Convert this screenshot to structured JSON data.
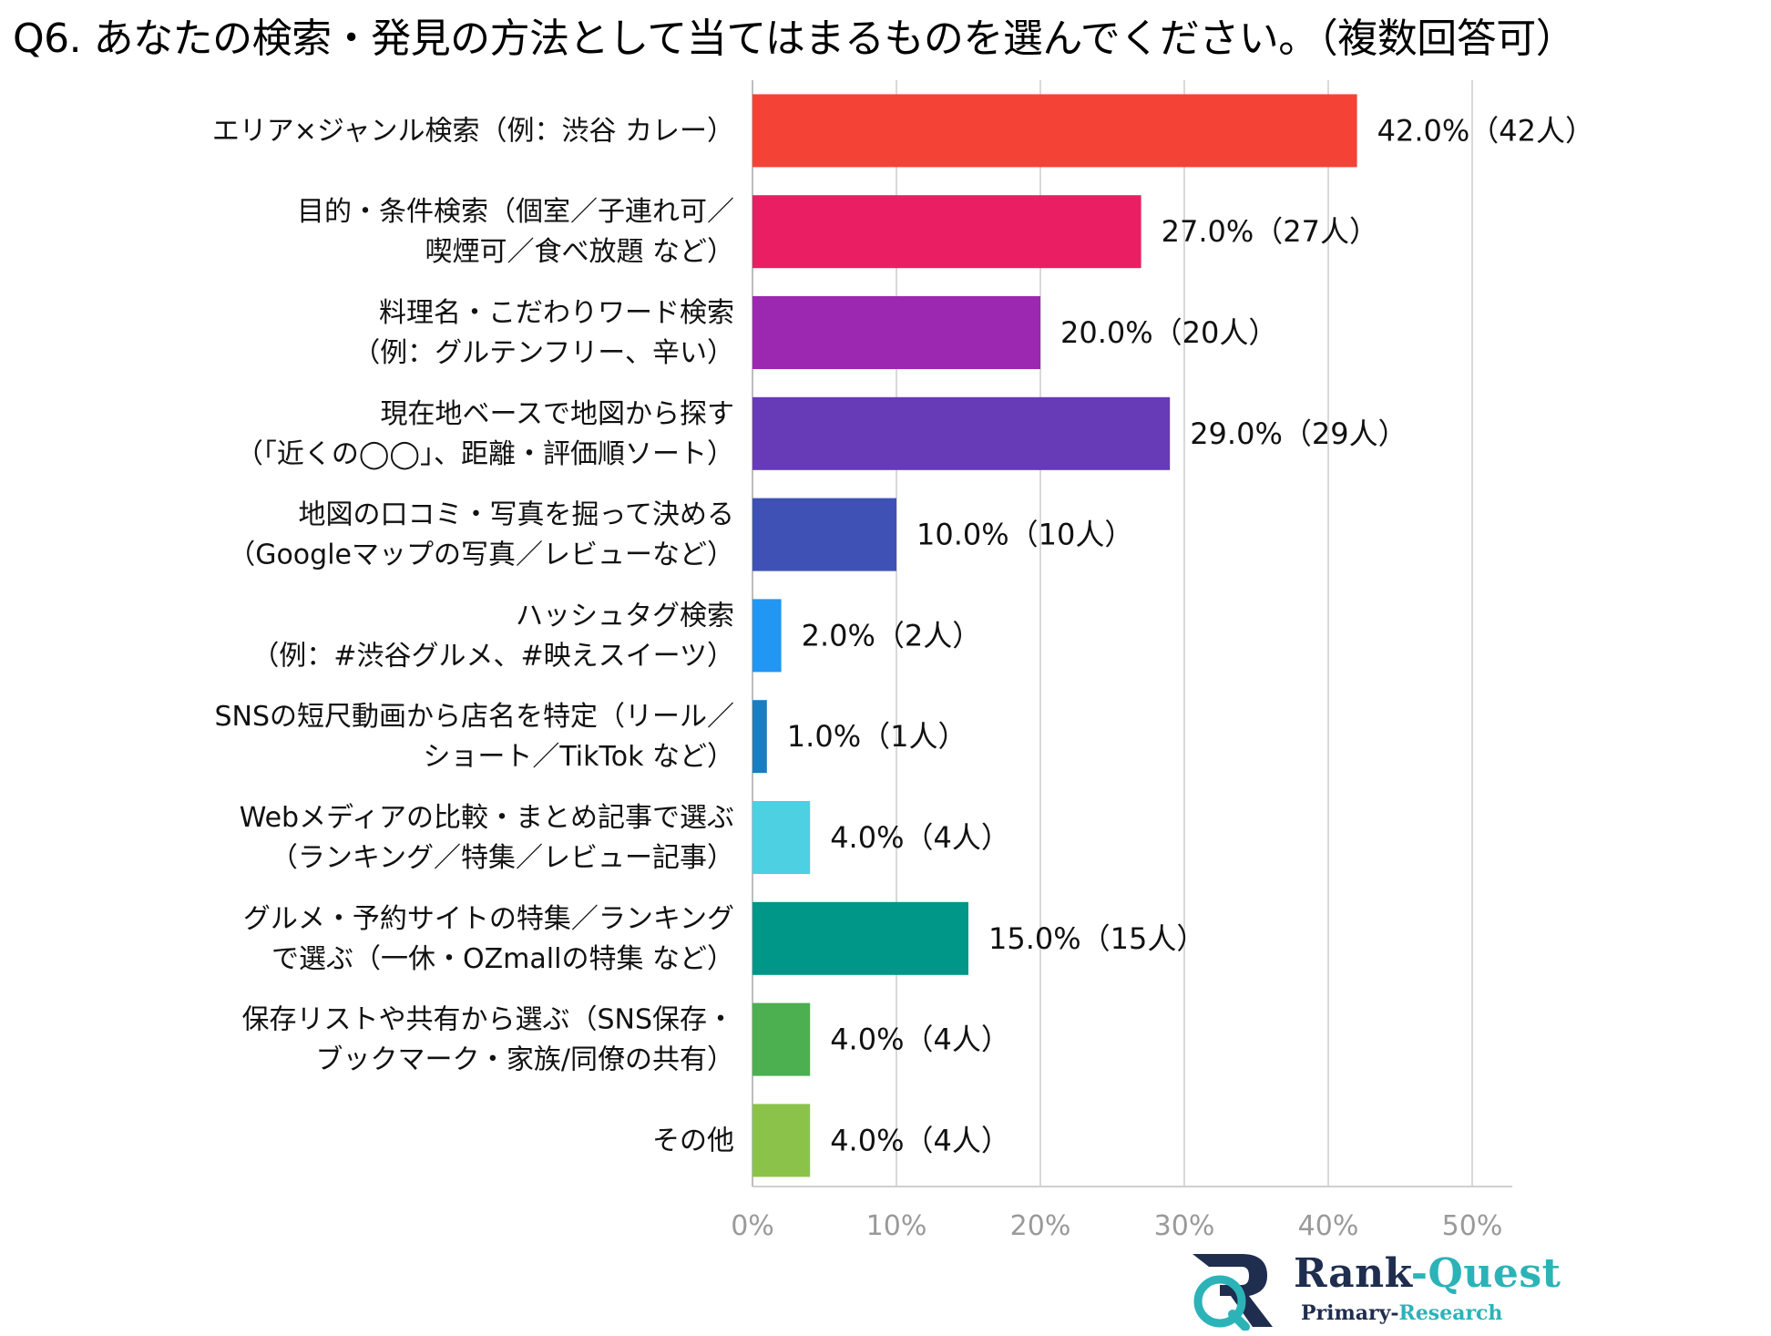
{
  "chart_data": {
    "type": "bar",
    "orientation": "horizontal",
    "title": "Q6. あなたの検索・発見の方法として当てはまるものを選んでください。（複数回答可）",
    "xlabel": "",
    "ylabel": "",
    "xlim": [
      0,
      50
    ],
    "x_ticks": [
      "0%",
      "10%",
      "20%",
      "30%",
      "40%",
      "50%"
    ],
    "grid": true,
    "categories": [
      [
        "エリア×ジャンル検索（例：渋谷 カレー）"
      ],
      [
        "目的・条件検索（個室／子連れ可／",
        "喫煙可／食べ放題 など）"
      ],
      [
        "料理名・こだわりワード検索",
        "（例：グルテンフリー、辛い）"
      ],
      [
        "現在地ベースで地図から探す",
        "（「近くの◯◯」、距離・評価順ソート）"
      ],
      [
        "地図の口コミ・写真を掘って決める",
        "（Googleマップの写真／レビューなど）"
      ],
      [
        "ハッシュタグ検索",
        "（例：#渋谷グルメ、#映えスイーツ）"
      ],
      [
        "SNSの短尺動画から店名を特定（リール／",
        "ショート／TikTok など）"
      ],
      [
        "Webメディアの比較・まとめ記事で選ぶ",
        "（ランキング／特集／レビュー記事）"
      ],
      [
        "グルメ・予約サイトの特集／ランキング",
        "で選ぶ（一休・OZmallの特集 など）"
      ],
      [
        "保存リストや共有から選ぶ（SNS保存・",
        "ブックマーク・家族/同僚の共有）"
      ],
      [
        "その他"
      ]
    ],
    "values": [
      42.0,
      27.0,
      20.0,
      29.0,
      10.0,
      2.0,
      1.0,
      4.0,
      15.0,
      4.0,
      4.0
    ],
    "value_labels": [
      "42.0%（42人）",
      "27.0%（27人）",
      "20.0%（20人）",
      "29.0%（29人）",
      "10.0%（10人）",
      "2.0%（2人）",
      "1.0%（1人）",
      "4.0%（4人）",
      "15.0%（15人）",
      "4.0%（4人）",
      "4.0%（4人）"
    ],
    "colors": [
      "#f44336",
      "#e91e63",
      "#9c27b0",
      "#673ab7",
      "#3f51b5",
      "#2196f3",
      "#1a7dc0",
      "#4dd0e1",
      "#009688",
      "#4caf50",
      "#8bc34a"
    ]
  },
  "logo": {
    "name_primary": "Rank",
    "name_secondary": "-Quest",
    "sub_a": "Primary-",
    "sub_b": "Research"
  }
}
